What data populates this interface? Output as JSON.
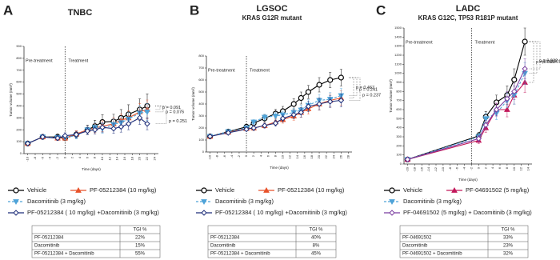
{
  "chart_data": [
    {
      "type": "line",
      "panel": "A",
      "title": "TNBC",
      "x_label": "Time (days)",
      "y_label": "Tumor volume (mm³)",
      "pre_label": "Pre-treatment",
      "post_label": "Treatment",
      "treatment_start": 0,
      "xlim": [
        -11,
        25
      ],
      "xticks": [
        -10,
        -8,
        -6,
        -4,
        -2,
        0,
        2,
        4,
        6,
        8,
        10,
        12,
        14,
        16,
        18,
        20,
        22,
        24
      ],
      "ylim": [
        0,
        900
      ],
      "yticks": [
        0,
        100,
        200,
        300,
        400,
        500,
        600,
        700,
        800,
        900
      ],
      "x": [
        -10,
        -6,
        -2,
        0,
        3,
        6,
        8,
        10,
        13,
        15,
        17,
        20,
        22
      ],
      "series": [
        {
          "name": "Vehicle",
          "color": "#000000",
          "marker": "circle",
          "dash": false,
          "values": [
            85,
            140,
            140,
            130,
            160,
            200,
            230,
            265,
            270,
            300,
            330,
            370,
            400
          ],
          "errors": [
            10,
            20,
            25,
            20,
            30,
            40,
            50,
            60,
            60,
            70,
            80,
            90,
            100
          ]
        },
        {
          "name": "PF-05212384 (10 mg/kg)",
          "color": "#e8522a",
          "marker": "triangle",
          "dash": false,
          "values": [
            85,
            140,
            130,
            130,
            165,
            200,
            215,
            230,
            250,
            280,
            300,
            350,
            370
          ],
          "errors": [
            10,
            20,
            20,
            20,
            25,
            35,
            40,
            45,
            50,
            55,
            60,
            70,
            80
          ]
        },
        {
          "name": "Dacomitinib (3 mg/kg)",
          "color": "#4fa3d8",
          "marker": "triangle-down",
          "dash": true,
          "values": [
            85,
            140,
            135,
            135,
            150,
            200,
            220,
            210,
            245,
            260,
            290,
            340,
            350
          ],
          "errors": [
            10,
            20,
            20,
            20,
            25,
            35,
            40,
            40,
            45,
            50,
            55,
            65,
            70
          ]
        },
        {
          "name": "PF-05212384 ( 10 mg/kg) +Dacomitinib (3 mg/kg)",
          "color": "#1f2f7a",
          "marker": "diamond",
          "dash": false,
          "values": [
            85,
            140,
            130,
            150,
            160,
            190,
            200,
            220,
            210,
            225,
            250,
            300,
            250
          ],
          "errors": [
            10,
            20,
            20,
            25,
            25,
            30,
            35,
            40,
            40,
            45,
            50,
            55,
            50
          ]
        }
      ],
      "p_values": [
        "p = 0.091",
        "p = 0.076",
        "p = 0.251"
      ]
    },
    {
      "type": "line",
      "panel": "B",
      "title": "LGSOC",
      "subtitle": "KRAS G12R mutant",
      "x_label": "Time (days)",
      "y_label": "Tumor volume (mm³)",
      "pre_label": "Pre-treatment",
      "post_label": "Treatment",
      "treatment_start": 0,
      "xlim": [
        -11,
        29
      ],
      "xticks": [
        -10,
        -8,
        -6,
        -4,
        -2,
        0,
        2,
        4,
        6,
        8,
        10,
        12,
        14,
        16,
        18,
        20,
        22,
        24,
        26,
        28
      ],
      "ylim": [
        0,
        800
      ],
      "yticks": [
        0,
        100,
        200,
        300,
        400,
        500,
        600,
        700,
        800
      ],
      "x": [
        -10,
        -5,
        0,
        2,
        5,
        8,
        10,
        13,
        15,
        17,
        20,
        23,
        26
      ],
      "series": [
        {
          "name": "Vehicle",
          "color": "#000000",
          "marker": "circle",
          "dash": false,
          "values": [
            130,
            170,
            210,
            240,
            280,
            320,
            340,
            400,
            450,
            500,
            560,
            600,
            620
          ],
          "errors": [
            10,
            15,
            20,
            25,
            30,
            35,
            40,
            45,
            50,
            55,
            60,
            65,
            70
          ]
        },
        {
          "name": "PF-05212384 (10 mg/kg)",
          "color": "#e8522a",
          "marker": "triangle",
          "dash": false,
          "values": [
            130,
            165,
            195,
            200,
            220,
            250,
            270,
            300,
            330,
            360,
            400,
            430,
            450
          ],
          "errors": [
            10,
            15,
            15,
            20,
            20,
            25,
            30,
            35,
            40,
            45,
            50,
            55,
            60
          ]
        },
        {
          "name": "Dacomitinib (3 mg/kg)",
          "color": "#4fa3d8",
          "marker": "triangle-down",
          "dash": true,
          "values": [
            130,
            170,
            200,
            250,
            290,
            300,
            310,
            330,
            350,
            390,
            430,
            440,
            470
          ],
          "errors": [
            10,
            15,
            20,
            20,
            25,
            30,
            30,
            35,
            40,
            45,
            50,
            55,
            60
          ]
        },
        {
          "name": "PF-05212384 ( 10 mg/kg) +Dacomitinib (3 mg/kg)",
          "color": "#1f2f7a",
          "marker": "diamond",
          "dash": false,
          "values": [
            130,
            160,
            190,
            200,
            220,
            240,
            280,
            310,
            330,
            380,
            400,
            420,
            430
          ],
          "errors": [
            10,
            15,
            15,
            20,
            20,
            25,
            30,
            35,
            40,
            45,
            50,
            50,
            55
          ]
        }
      ],
      "p_values": [
        "p = 0.467",
        "p = 0.241",
        "p = 0.237"
      ]
    },
    {
      "type": "line",
      "panel": "C",
      "title": "LADC",
      "subtitle": "KRAS G12C, TP53 R181P mutant",
      "x_label": "Time (days)",
      "y_label": "Tumor volume (mm³)",
      "pre_label": "Pre-treatment",
      "post_label": "Treatment",
      "treatment_start": -2,
      "xlim": [
        -21,
        15
      ],
      "xticks": [
        -20,
        -18,
        -16,
        -14,
        -12,
        -10,
        -8,
        -6,
        -4,
        -2,
        0,
        2,
        4,
        6,
        8,
        10,
        12,
        14
      ],
      "ylim": [
        0,
        1500
      ],
      "yticks": [
        0,
        100,
        200,
        300,
        400,
        500,
        600,
        700,
        800,
        900,
        1000,
        1100,
        1200,
        1300,
        1400,
        1500
      ],
      "x": [
        -20,
        0,
        2,
        5,
        8,
        10,
        13
      ],
      "series": [
        {
          "name": "Vehicle",
          "color": "#000000",
          "marker": "circle",
          "dash": false,
          "values": [
            50,
            310,
            520,
            680,
            760,
            930,
            1350
          ],
          "errors": [
            10,
            40,
            60,
            80,
            100,
            120,
            150
          ]
        },
        {
          "name": "PF-04691502 (5 mg/kg)",
          "color": "#c2185b",
          "marker": "triangle",
          "dash": false,
          "values": [
            50,
            260,
            400,
            600,
            600,
            760,
            900
          ],
          "errors": [
            10,
            35,
            50,
            70,
            80,
            100,
            110
          ]
        },
        {
          "name": "Dacomitinib (3 mg/kg)",
          "color": "#4fa3d8",
          "marker": "triangle-down",
          "dash": true,
          "values": [
            50,
            300,
            500,
            560,
            700,
            760,
            1000
          ],
          "errors": [
            10,
            40,
            60,
            70,
            80,
            100,
            120
          ]
        },
        {
          "name": "PF-04691502 (5 mg/kg) + Dacomitinib (3 mg/kg)",
          "color": "#7b3fa0",
          "marker": "diamond",
          "dash": false,
          "values": [
            50,
            280,
            430,
            600,
            720,
            800,
            1050
          ],
          "errors": [
            10,
            35,
            50,
            70,
            80,
            90,
            110
          ]
        }
      ],
      "p_values": [
        "p = 0.055",
        "p = 0.332",
        "p = 0.801"
      ]
    }
  ],
  "tables": [
    {
      "header": "TGI %",
      "rows": [
        [
          "PF-05212384",
          "22%"
        ],
        [
          "Dacomitinib",
          "15%"
        ],
        [
          "PF-05212384 + Dacomitinib",
          "55%"
        ]
      ]
    },
    {
      "header": "TGI %",
      "rows": [
        [
          "PF-05212384",
          "40%"
        ],
        [
          "Dacomitinib",
          "8%"
        ],
        [
          "PF-05212384 + Dacomitinib",
          "45%"
        ]
      ]
    },
    {
      "header": "TGI %",
      "rows": [
        [
          "PF-04691502",
          "33%"
        ],
        [
          "Dacomitinib",
          "23%"
        ],
        [
          "PF-04691502 + Dacomitinib",
          "32%"
        ]
      ]
    }
  ]
}
